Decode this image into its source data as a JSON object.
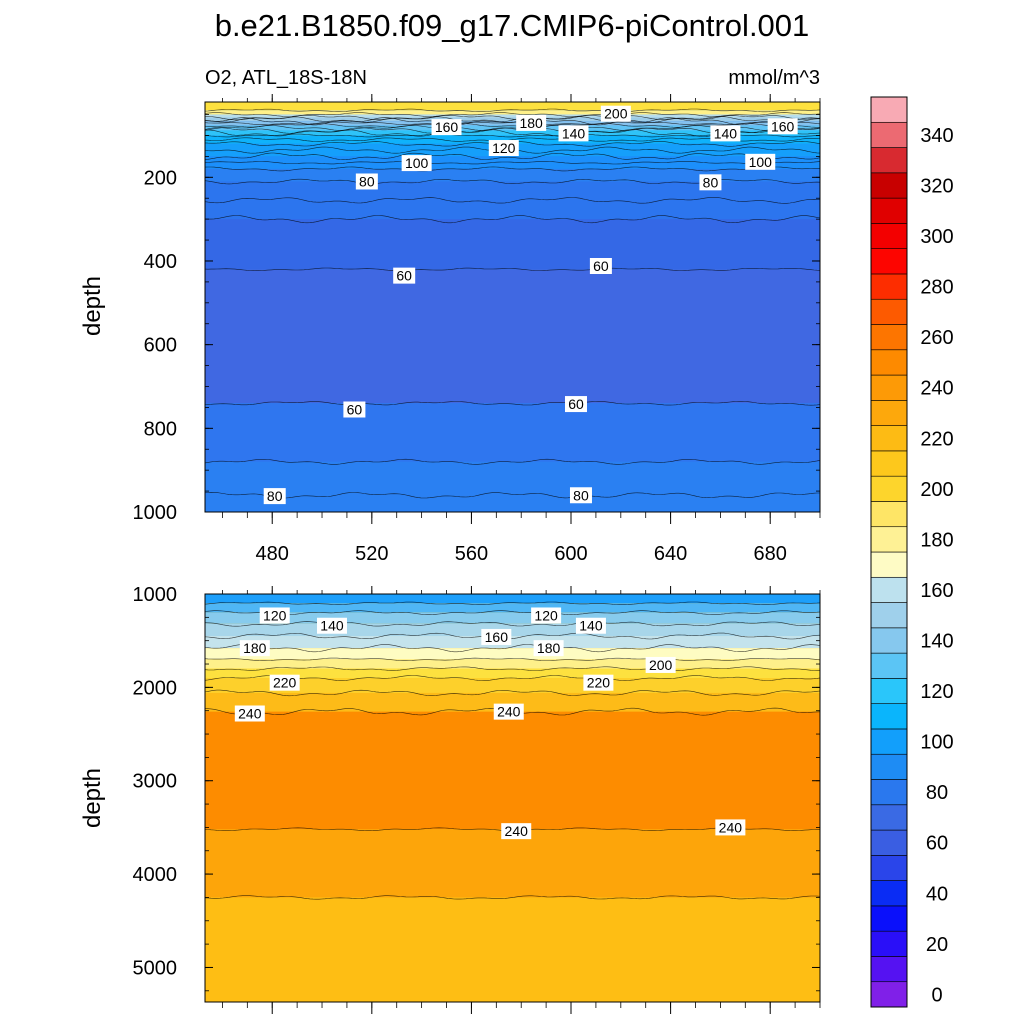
{
  "title": "b.e21.B1850.f09_g17.CMIP6-piControl.001",
  "chart_data": [
    {
      "type": "contour",
      "left_label": "O2, ATL_18S-18N",
      "right_label": "mmol/m^3",
      "ylabel": "depth",
      "xlim": [
        453,
        700
      ],
      "ylim": [
        1000,
        0
      ],
      "y_top_data": 20,
      "x_ticks": [
        480,
        520,
        560,
        600,
        640,
        680
      ],
      "y_ticks": [
        200,
        400,
        600,
        800,
        1000
      ],
      "background_fill": "#2a80f2",
      "bands": [
        {
          "from": 20,
          "to": 40,
          "color": "#fde13f"
        },
        {
          "from": 40,
          "to": 50,
          "color": "#fef08a"
        },
        {
          "from": 50,
          "to": 57,
          "color": "#b7ddec"
        },
        {
          "from": 57,
          "to": 66,
          "color": "#9ccce8"
        },
        {
          "from": 66,
          "to": 76,
          "color": "#86c2ee"
        },
        {
          "from": 76,
          "to": 88,
          "color": "#5fc3f5"
        },
        {
          "from": 88,
          "to": 100,
          "color": "#2fc3f8"
        },
        {
          "from": 100,
          "to": 120,
          "color": "#0fb2fb"
        },
        {
          "from": 120,
          "to": 150,
          "color": "#159ffb"
        },
        {
          "from": 150,
          "to": 180,
          "color": "#1c8ffb"
        },
        {
          "from": 180,
          "to": 210,
          "color": "#2a80f2"
        },
        {
          "from": 210,
          "to": 300,
          "color": "#2c75ee"
        },
        {
          "from": 300,
          "to": 420,
          "color": "#3468e6"
        },
        {
          "from": 420,
          "to": 740,
          "color": "#4068e2"
        },
        {
          "from": 740,
          "to": 880,
          "color": "#2f76ef"
        },
        {
          "from": 880,
          "to": 960,
          "color": "#2a80f2"
        }
      ],
      "contour_depths": [
        40,
        50,
        57,
        62,
        66,
        71,
        76,
        82,
        88,
        94,
        100,
        110,
        120,
        135,
        150,
        165,
        180,
        210,
        255,
        300,
        420,
        740,
        880,
        960
      ],
      "labels": [
        {
          "text": "200",
          "x": 618,
          "y": 48
        },
        {
          "text": "180",
          "x": 584,
          "y": 70
        },
        {
          "text": "160",
          "x": 550,
          "y": 80
        },
        {
          "text": "160",
          "x": 685,
          "y": 78
        },
        {
          "text": "140",
          "x": 601,
          "y": 95
        },
        {
          "text": "140",
          "x": 662,
          "y": 95
        },
        {
          "text": "120",
          "x": 573,
          "y": 130
        },
        {
          "text": "100",
          "x": 538,
          "y": 166
        },
        {
          "text": "100",
          "x": 676,
          "y": 163
        },
        {
          "text": "80",
          "x": 518,
          "y": 210
        },
        {
          "text": "80",
          "x": 656,
          "y": 212
        },
        {
          "text": "60",
          "x": 533,
          "y": 435
        },
        {
          "text": "60",
          "x": 612,
          "y": 412
        },
        {
          "text": "60",
          "x": 513,
          "y": 755
        },
        {
          "text": "60",
          "x": 602,
          "y": 742
        },
        {
          "text": "80",
          "x": 481,
          "y": 962
        },
        {
          "text": "80",
          "x": 604,
          "y": 960
        }
      ]
    },
    {
      "type": "contour",
      "ylabel": "depth",
      "xlim": [
        453,
        700
      ],
      "ylim": [
        5370,
        1000
      ],
      "y_ticks": [
        1000,
        2000,
        3000,
        4000,
        5000
      ],
      "background_fill": "#febe14",
      "bands": [
        {
          "from": 1000,
          "to": 1100,
          "color": "#1d9ffb"
        },
        {
          "from": 1100,
          "to": 1200,
          "color": "#4fb6f5"
        },
        {
          "from": 1200,
          "to": 1320,
          "color": "#87cbed"
        },
        {
          "from": 1320,
          "to": 1450,
          "color": "#a8d6ea"
        },
        {
          "from": 1450,
          "to": 1580,
          "color": "#c4e3ec"
        },
        {
          "from": 1580,
          "to": 1700,
          "color": "#fefcc2"
        },
        {
          "from": 1700,
          "to": 1800,
          "color": "#fef08a"
        },
        {
          "from": 1800,
          "to": 1900,
          "color": "#fde13f"
        },
        {
          "from": 1900,
          "to": 2060,
          "color": "#fdd02b"
        },
        {
          "from": 2060,
          "to": 2260,
          "color": "#fdbb18"
        },
        {
          "from": 2260,
          "to": 3520,
          "color": "#fd8c00"
        },
        {
          "from": 3520,
          "to": 4250,
          "color": "#fda50a"
        }
      ],
      "contour_depths": [
        1100,
        1200,
        1320,
        1450,
        1580,
        1700,
        1800,
        1900,
        2060,
        2260,
        3520,
        4250
      ],
      "labels": [
        {
          "text": "120",
          "x": 481,
          "y": 1230
        },
        {
          "text": "120",
          "x": 590,
          "y": 1230
        },
        {
          "text": "140",
          "x": 504,
          "y": 1340
        },
        {
          "text": "140",
          "x": 608,
          "y": 1340
        },
        {
          "text": "160",
          "x": 570,
          "y": 1460
        },
        {
          "text": "180",
          "x": 473,
          "y": 1580
        },
        {
          "text": "180",
          "x": 591,
          "y": 1580
        },
        {
          "text": "200",
          "x": 636,
          "y": 1760
        },
        {
          "text": "220",
          "x": 485,
          "y": 1950
        },
        {
          "text": "220",
          "x": 611,
          "y": 1950
        },
        {
          "text": "240",
          "x": 471,
          "y": 2280
        },
        {
          "text": "240",
          "x": 575,
          "y": 2260
        },
        {
          "text": "240",
          "x": 578,
          "y": 3540
        },
        {
          "text": "240",
          "x": 664,
          "y": 3500
        }
      ]
    }
  ],
  "colorbar": {
    "tick_labels": [
      "0",
      "20",
      "40",
      "60",
      "80",
      "100",
      "120",
      "140",
      "160",
      "180",
      "200",
      "220",
      "240",
      "260",
      "280",
      "300",
      "320",
      "340"
    ],
    "colors_bottom_to_top": [
      "#8020e8",
      "#5512f2",
      "#2a0ff8",
      "#0a10fb",
      "#0a2cf4",
      "#2a45ea",
      "#3a5ee2",
      "#3a6ae4",
      "#2a78ee",
      "#1e8cf4",
      "#129ffb",
      "#0ab5fc",
      "#2ac6fa",
      "#5bc5f5",
      "#86c8ee",
      "#9fd0eb",
      "#bde1ee",
      "#fefbc5",
      "#fef195",
      "#fee566",
      "#fdd52c",
      "#fdc81c",
      "#fdbb14",
      "#fda80c",
      "#fd9a06",
      "#fd8a00",
      "#fd7500",
      "#fd5a00",
      "#fd2d00",
      "#fd0500",
      "#f30000",
      "#e00000",
      "#c80000",
      "#d82a30",
      "#ec6a72",
      "#f8aab4"
    ]
  }
}
